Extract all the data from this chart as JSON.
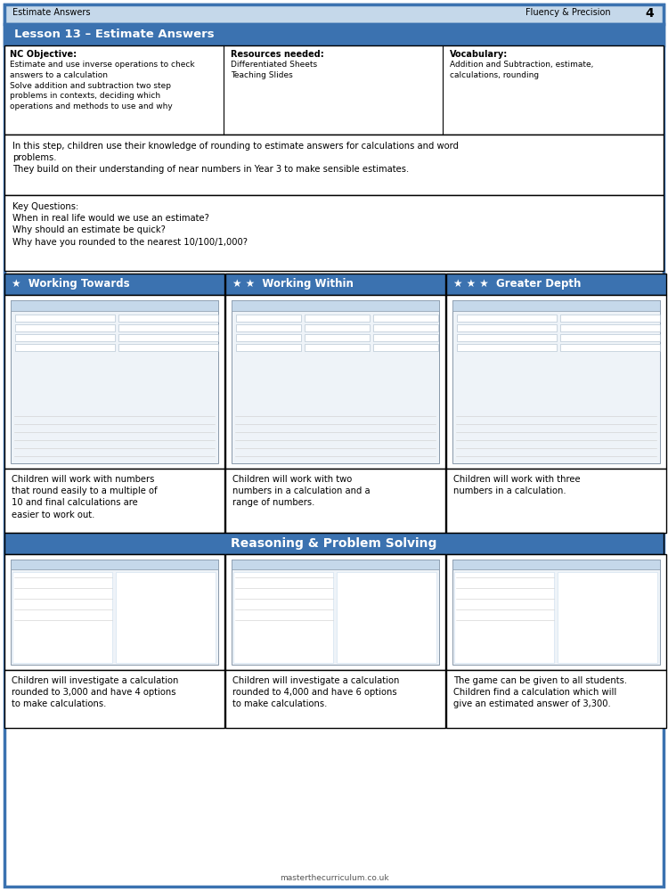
{
  "header_bg": "#c5d8ea",
  "header_text_left": "Estimate Answers",
  "header_text_right": "Fluency & Precision",
  "header_page": "4",
  "lesson_title": "Lesson 13 – Estimate Answers",
  "lesson_title_bg": "#3b72b0",
  "lesson_title_color": "#ffffff",
  "nc_objective_title": "NC Objective:",
  "nc_objective_text": "Estimate and use inverse operations to check\nanswers to a calculation\nSolve addition and subtraction two step\nproblems in contexts, deciding which\noperations and methods to use and why",
  "resources_title": "Resources needed:",
  "resources_text": "Differentiated Sheets\nTeaching Slides",
  "vocabulary_title": "Vocabulary:",
  "vocabulary_text": "Addition and Subtraction, estimate,\ncalculations, rounding",
  "knowledge_text": "In this step, children use their knowledge of rounding to estimate answers for calculations and word\nproblems.\nThey build on their understanding of near numbers in Year 3 to make sensible estimates.",
  "key_questions_text": "Key Questions:\nWhen in real life would we use an estimate?\nWhy should an estimate be quick?\nWhy have you rounded to the nearest 10/100/1,000?",
  "working_towards_title": "Working Towards",
  "working_within_title": "Working Within",
  "greater_depth_title": "Greater Depth",
  "working_towards_desc": "Children will work with numbers\nthat round easily to a multiple of\n10 and final calculations are\neasier to work out.",
  "working_within_desc": "Children will work with two\nnumbers in a calculation and a\nrange of numbers.",
  "greater_depth_desc": "Children will work with three\nnumbers in a calculation.",
  "section_header_bg": "#3b72b0",
  "section_header_color": "#ffffff",
  "rps_title": "Reasoning & Problem Solving",
  "rps_desc1": "Children will investigate a calculation\nrounded to 3,000 and have 4 options\nto make calculations.",
  "rps_desc2": "Children will investigate a calculation\nrounded to 4,000 and have 6 options\nto make calculations.",
  "rps_desc3": "The game can be given to all students.\nChildren find a calculation which will\ngive an estimated answer of 3,300.",
  "footer_text": "masterthecurriculum.co.uk",
  "outer_border_color": "#3b72b0",
  "image_placeholder_color": "#dde8f0",
  "image_border_color": "#aabbcc",
  "ws_header_color": "#3b72b0",
  "ws_header_bg": "#ddeeff"
}
